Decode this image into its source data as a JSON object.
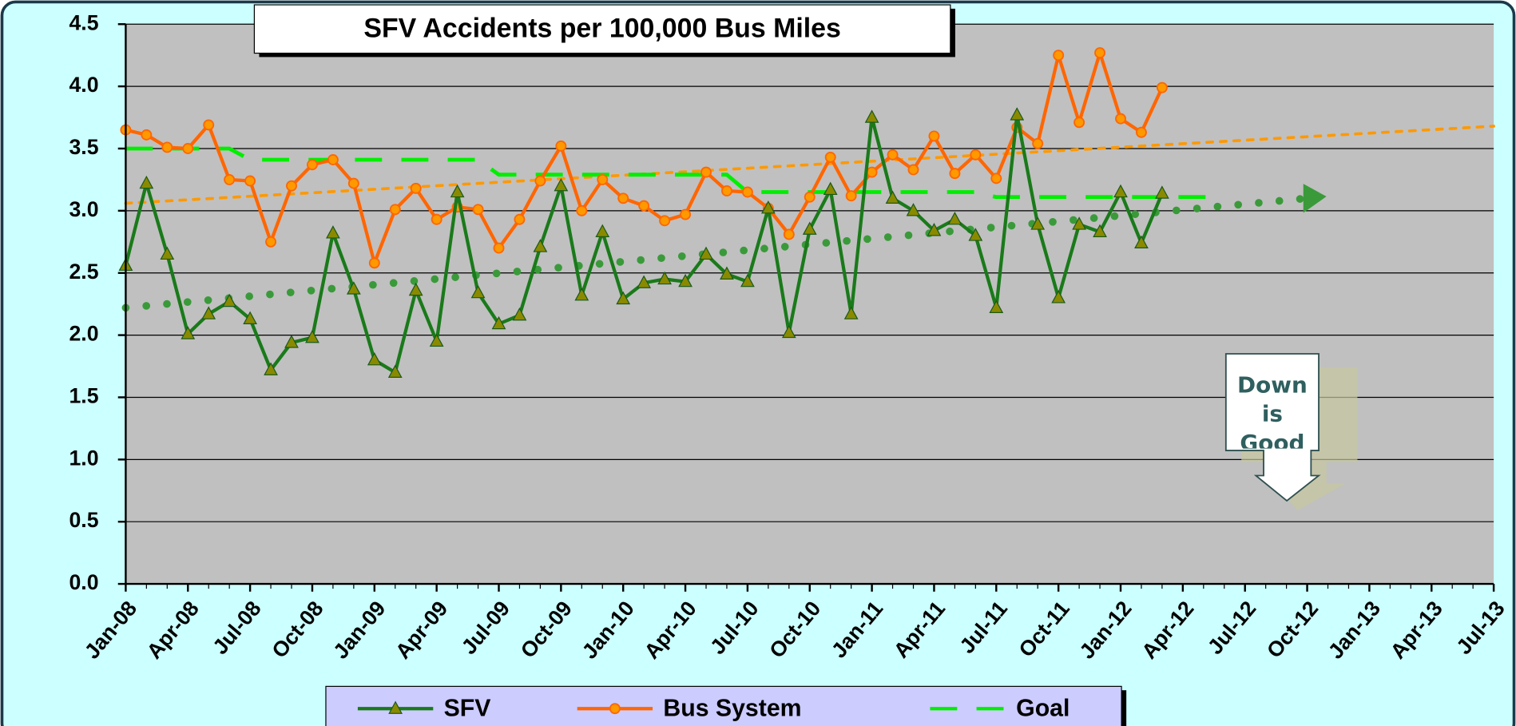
{
  "chart_data": {
    "type": "line",
    "title": "SFV Accidents per 100,000 Bus Miles",
    "categories": [
      "Jan-08",
      null,
      null,
      "Apr-08",
      null,
      null,
      "Jul-08",
      null,
      null,
      "Oct-08",
      null,
      null,
      "Jan-09",
      null,
      null,
      "Apr-09",
      null,
      null,
      "Jul-09",
      null,
      null,
      "Oct-09",
      null,
      null,
      "Jan-10",
      null,
      null,
      "Apr-10",
      null,
      null,
      "Jul-10",
      null,
      null,
      "Oct-10",
      null,
      null,
      "Jan-11",
      null,
      null,
      "Apr-11",
      null,
      null,
      "Jul-11",
      null,
      null,
      "Oct-11",
      null,
      null,
      "Jan-12",
      null,
      null,
      "Apr-12",
      null,
      null,
      "Jul-12",
      null,
      null,
      "Oct-12",
      null,
      null,
      "Jan-13",
      null,
      null,
      "Apr-13",
      null,
      null,
      "Jul-13"
    ],
    "series": [
      {
        "name": "SFV",
        "color": "#1a7a1a",
        "marker": "triangle",
        "marker_color": "#8a8a00",
        "values": [
          2.56,
          3.22,
          2.65,
          2.01,
          2.17,
          2.27,
          2.13,
          1.72,
          1.94,
          1.98,
          2.82,
          2.37,
          1.8,
          1.7,
          2.36,
          1.95,
          3.15,
          2.34,
          2.09,
          2.16,
          2.71,
          3.2,
          2.32,
          2.83,
          2.29,
          2.42,
          2.45,
          2.43,
          2.65,
          2.49,
          2.43,
          3.02,
          2.02,
          2.85,
          3.17,
          2.17,
          3.75,
          3.1,
          3.0,
          2.84,
          2.93,
          2.8,
          2.22,
          3.77,
          2.89,
          2.3,
          2.89,
          2.83,
          3.15,
          2.74,
          3.14,
          null,
          null,
          null,
          null,
          null,
          null,
          null,
          null,
          null,
          null,
          null,
          null,
          null,
          null,
          null,
          null
        ]
      },
      {
        "name": "Bus System",
        "color": "#ff6600",
        "marker": "circle",
        "marker_color": "#ff9900",
        "values": [
          3.65,
          3.61,
          3.51,
          3.5,
          3.69,
          3.25,
          3.24,
          2.75,
          3.2,
          3.37,
          3.41,
          3.22,
          2.58,
          3.01,
          3.18,
          2.93,
          3.03,
          3.01,
          2.7,
          2.93,
          3.24,
          3.52,
          3.0,
          3.25,
          3.1,
          3.04,
          2.92,
          2.97,
          3.31,
          3.16,
          3.15,
          3.02,
          2.81,
          3.11,
          3.43,
          3.12,
          3.31,
          3.45,
          3.33,
          3.6,
          3.3,
          3.45,
          3.26,
          3.67,
          3.54,
          4.25,
          3.71,
          4.27,
          3.74,
          3.63,
          3.99,
          null,
          null,
          null,
          null,
          null,
          null,
          null,
          null,
          null,
          null,
          null,
          null,
          null,
          null,
          null,
          null
        ]
      },
      {
        "name": "Goal",
        "color": "#00ee00",
        "dashed": true,
        "values": [
          3.5,
          3.5,
          3.5,
          3.5,
          3.5,
          3.5,
          3.41,
          3.41,
          3.41,
          3.41,
          3.41,
          3.41,
          3.41,
          3.41,
          3.41,
          3.41,
          3.41,
          3.41,
          3.29,
          3.29,
          3.29,
          3.29,
          3.29,
          3.29,
          3.29,
          3.29,
          3.29,
          3.29,
          3.29,
          3.29,
          3.15,
          3.15,
          3.15,
          3.15,
          3.15,
          3.15,
          3.15,
          3.15,
          3.15,
          3.15,
          3.15,
          3.15,
          3.11,
          3.11,
          3.11,
          3.11,
          3.11,
          3.11,
          3.11,
          3.11,
          3.11,
          3.11,
          3.11,
          3.11,
          null,
          null,
          null,
          null,
          null,
          null,
          null,
          null,
          null,
          null,
          null,
          null,
          null
        ]
      }
    ],
    "trendlines": [
      {
        "color": "#3a9a3a",
        "style": "dots",
        "x": [
          0,
          57
        ],
        "values": [
          2.22,
          3.1
        ]
      },
      {
        "color": "#ff9900",
        "style": "dashes",
        "x": [
          0,
          66
        ],
        "values": [
          3.06,
          3.68
        ]
      }
    ],
    "ylim": [
      0,
      4.5
    ],
    "yticks": [
      {
        "value": 0,
        "label": "0.0"
      },
      0.5,
      {
        "value": 1,
        "label": "1.0"
      },
      1.5,
      {
        "value": 2,
        "label": "2.0"
      },
      2.5,
      {
        "value": 3,
        "label": "3.0"
      },
      3.5,
      {
        "value": 4,
        "label": "4.0"
      },
      4.5
    ],
    "grid": true,
    "legend": "bottom",
    "annotation": "Down is Good"
  }
}
